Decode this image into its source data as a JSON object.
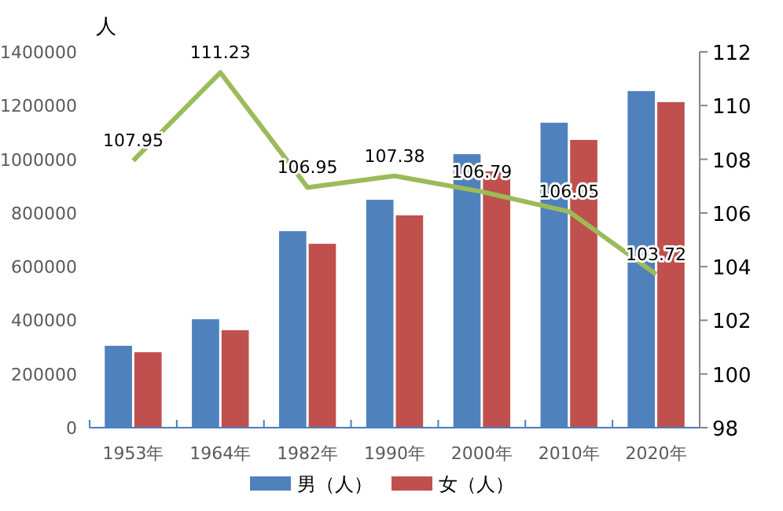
{
  "chart_data": {
    "type": "bar",
    "ylabel": "人",
    "categories": [
      "1953年",
      "1964年",
      "1982年",
      "1990年",
      "2000年",
      "2010年",
      "2020年"
    ],
    "series": [
      {
        "name": "男（人）",
        "color": "#4f81bd",
        "values": [
          305000,
          404000,
          732000,
          849000,
          1019000,
          1136000,
          1254000
        ]
      },
      {
        "name": "女（人）",
        "color": "#c0504d",
        "values": [
          281000,
          363000,
          685000,
          791000,
          955000,
          1072000,
          1213000
        ]
      },
      {
        "type": "line",
        "axis": "y2",
        "color": "#9bbb59",
        "values": [
          107.95,
          111.23,
          106.95,
          107.38,
          106.79,
          106.05,
          103.72
        ],
        "value_labels": [
          "107.95",
          "111.23",
          "106.95",
          "107.38",
          "106.79",
          "106.05",
          "103.72"
        ]
      }
    ],
    "ylim": [
      0,
      1400000
    ],
    "yticks": [
      0,
      200000,
      400000,
      600000,
      800000,
      1000000,
      1200000,
      1400000
    ],
    "y2lim": [
      98,
      112
    ],
    "y2ticks": [
      98,
      100,
      102,
      104,
      106,
      108,
      110,
      112
    ],
    "legend": "bottom",
    "grid": false,
    "marker": "none"
  }
}
